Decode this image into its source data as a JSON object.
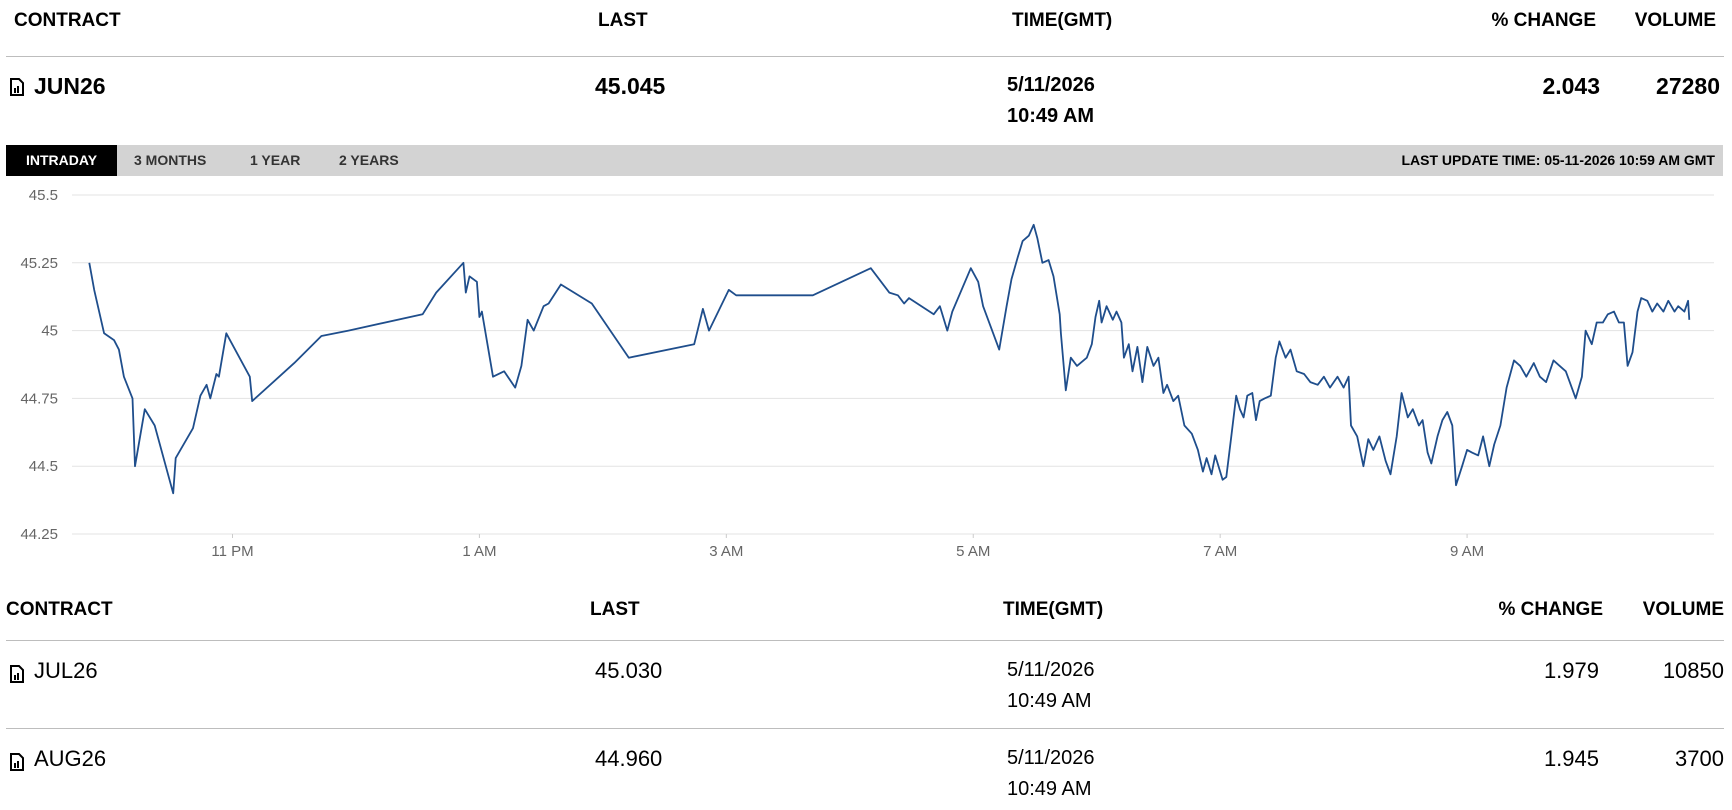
{
  "top_table": {
    "headers": [
      "CONTRACT",
      "LAST",
      "TIME(GMT)",
      "% CHANGE",
      "VOLUME"
    ],
    "rows": [
      {
        "contract": "JUN26",
        "last": "45.045",
        "date": "5/11/2026",
        "time": "10:49 AM",
        "change": "2.043",
        "volume": "27280"
      }
    ]
  },
  "tabs": [
    "INTRADAY",
    "3 MONTHS",
    "1 YEAR",
    "2 YEARS"
  ],
  "last_update": "LAST UPDATE TIME: 05-11-2026 10:59 AM GMT",
  "chart_data": {
    "type": "line",
    "color": "#1f4e8c",
    "grid": true,
    "ylim": [
      44.25,
      45.5
    ],
    "yticks": [
      44.25,
      44.5,
      44.75,
      45,
      45.25,
      45.5
    ],
    "xlim": [
      21.7,
      35
    ],
    "xticks": [
      {
        "value": 23,
        "label": "11 PM"
      },
      {
        "value": 25,
        "label": "1 AM"
      },
      {
        "value": 27,
        "label": "3 AM"
      },
      {
        "value": 29,
        "label": "5 AM"
      },
      {
        "value": 31,
        "label": "7 AM"
      },
      {
        "value": 33,
        "label": "9 AM"
      }
    ],
    "x": [
      21.84,
      21.88,
      21.96,
      22.04,
      22.08,
      22.12,
      22.19,
      22.21,
      22.29,
      22.37,
      22.52,
      22.54,
      22.68,
      22.74,
      22.79,
      22.82,
      22.87,
      22.89,
      22.95,
      23.14,
      23.16,
      23.5,
      23.72,
      23.94,
      24.54,
      24.65,
      24.87,
      24.89,
      24.92,
      24.98,
      25,
      25.02,
      25.11,
      25.2,
      25.29,
      25.34,
      25.39,
      25.44,
      25.52,
      25.56,
      25.66,
      25.91,
      26.21,
      26.74,
      26.81,
      26.86,
      27.02,
      27.08,
      27.7,
      28.17,
      28.32,
      28.39,
      28.44,
      28.48,
      28.68,
      28.73,
      28.79,
      28.83,
      28.98,
      29.04,
      29.08,
      29.21,
      29.27,
      29.31,
      29.36,
      29.4,
      29.45,
      29.49,
      29.52,
      29.56,
      29.61,
      29.65,
      29.7,
      29.71,
      29.75,
      29.79,
      29.84,
      29.92,
      29.96,
      29.99,
      30.02,
      30.04,
      30.08,
      30.13,
      30.16,
      30.2,
      30.22,
      30.26,
      30.29,
      30.33,
      30.37,
      30.41,
      30.46,
      30.5,
      30.54,
      30.57,
      30.62,
      30.66,
      30.71,
      30.77,
      30.82,
      30.86,
      30.89,
      30.93,
      30.96,
      31.02,
      31.05,
      31.09,
      31.13,
      31.16,
      31.19,
      31.22,
      31.26,
      31.29,
      31.32,
      31.36,
      31.41,
      31.45,
      31.48,
      31.53,
      31.57,
      31.62,
      31.68,
      31.73,
      31.79,
      31.84,
      31.89,
      31.95,
      32,
      32.04,
      32.06,
      32.11,
      32.16,
      32.2,
      32.24,
      32.29,
      32.34,
      32.38,
      32.43,
      32.47,
      32.52,
      32.56,
      32.61,
      32.64,
      32.68,
      32.71,
      32.76,
      32.8,
      32.84,
      32.88,
      32.91,
      32.96,
      33,
      33.04,
      33.09,
      33.13,
      33.18,
      33.22,
      33.27,
      33.32,
      33.38,
      33.43,
      33.48,
      33.54,
      33.59,
      33.64,
      33.7,
      33.75,
      33.8,
      33.88,
      33.93,
      33.96,
      34.01,
      34.05,
      34.1,
      34.14,
      34.19,
      34.23,
      34.27,
      34.3,
      34.34,
      34.38,
      34.41,
      34.46,
      34.5,
      34.54,
      34.59,
      34.63,
      34.68,
      34.71,
      34.76,
      34.79,
      34.8
    ],
    "values": [
      45.25,
      45.15,
      44.99,
      44.965,
      44.93,
      44.83,
      44.75,
      44.5,
      44.71,
      44.65,
      44.4,
      44.53,
      44.64,
      44.76,
      44.8,
      44.75,
      44.84,
      44.83,
      44.99,
      44.83,
      44.74,
      44.88,
      44.98,
      45,
      45.06,
      45.14,
      45.25,
      45.14,
      45.2,
      45.18,
      45.05,
      45.07,
      44.83,
      44.85,
      44.79,
      44.87,
      45.04,
      45,
      45.09,
      45.1,
      45.17,
      45.1,
      44.9,
      44.95,
      45.08,
      45,
      45.15,
      45.13,
      45.13,
      45.23,
      45.14,
      45.13,
      45.1,
      45.12,
      45.06,
      45.09,
      45,
      45.07,
      45.23,
      45.18,
      45.09,
      44.93,
      45.09,
      45.19,
      45.27,
      45.33,
      45.35,
      45.39,
      45.34,
      45.25,
      45.26,
      45.2,
      45.06,
      44.99,
      44.78,
      44.9,
      44.87,
      44.9,
      44.95,
      45.05,
      45.11,
      45.03,
      45.09,
      45.04,
      45.07,
      45.03,
      44.9,
      44.95,
      44.85,
      44.94,
      44.81,
      44.94,
      44.87,
      44.9,
      44.77,
      44.8,
      44.74,
      44.76,
      44.65,
      44.62,
      44.56,
      44.48,
      44.53,
      44.47,
      44.54,
      44.45,
      44.46,
      44.61,
      44.76,
      44.71,
      44.68,
      44.76,
      44.77,
      44.67,
      44.74,
      44.75,
      44.76,
      44.9,
      44.96,
      44.9,
      44.93,
      44.85,
      44.84,
      44.81,
      44.8,
      44.83,
      44.79,
      44.83,
      44.79,
      44.83,
      44.65,
      44.61,
      44.5,
      44.6,
      44.56,
      44.61,
      44.52,
      44.47,
      44.61,
      44.77,
      44.68,
      44.71,
      44.65,
      44.67,
      44.55,
      44.51,
      44.61,
      44.67,
      44.7,
      44.65,
      44.43,
      44.5,
      44.56,
      44.55,
      44.54,
      44.61,
      44.5,
      44.58,
      44.65,
      44.79,
      44.89,
      44.87,
      44.83,
      44.88,
      44.83,
      44.81,
      44.89,
      44.87,
      44.85,
      44.75,
      44.83,
      45,
      44.95,
      45.03,
      45.03,
      45.06,
      45.07,
      45.03,
      45.03,
      44.87,
      44.92,
      45.07,
      45.12,
      45.11,
      45.07,
      45.1,
      45.07,
      45.11,
      45.07,
      45.09,
      45.07,
      45.11,
      45.04
    ]
  },
  "bottom_table": {
    "headers": [
      "CONTRACT",
      "LAST",
      "TIME(GMT)",
      "% CHANGE",
      "VOLUME"
    ],
    "rows": [
      {
        "contract": "JUL26",
        "last": "45.030",
        "date": "5/11/2026",
        "time": "10:49 AM",
        "change": "1.979",
        "volume": "10850"
      },
      {
        "contract": "AUG26",
        "last": "44.960",
        "date": "5/11/2026",
        "time": "10:49 AM",
        "change": "1.945",
        "volume": "3700"
      }
    ]
  }
}
